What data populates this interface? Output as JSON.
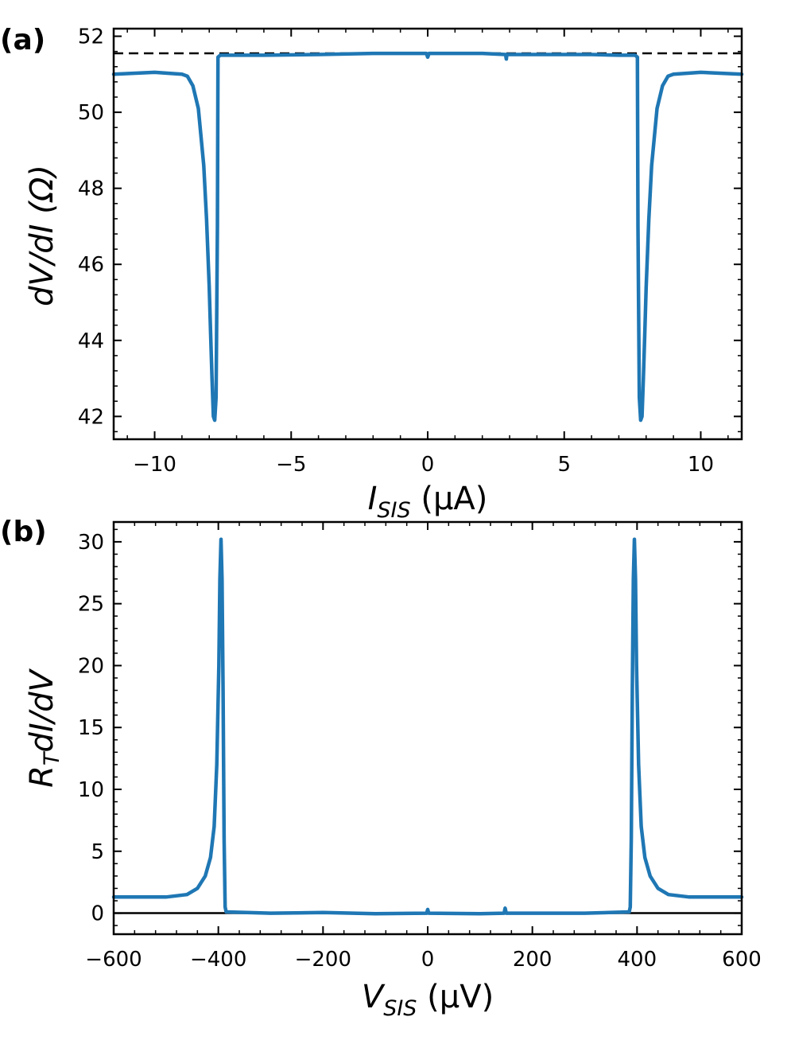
{
  "colors": {
    "series": "#1f77b4",
    "reference": "#000000"
  },
  "chart_data": [
    {
      "panel_label": "(a)",
      "type": "line",
      "xlabel": {
        "main": "I",
        "sub": "SIS",
        "unit": " (μA)"
      },
      "ylabel": "dV/dI (Ω)",
      "xlim": [
        -11.5,
        11.5
      ],
      "ylim": [
        41.4,
        52.2
      ],
      "xticks": [
        -10,
        -5,
        0,
        5,
        10
      ],
      "xtick_labels": [
        "−10",
        "−5",
        "0",
        "5",
        "10"
      ],
      "yticks": [
        42,
        44,
        46,
        48,
        50,
        52
      ],
      "ytick_labels": [
        "42",
        "44",
        "46",
        "48",
        "50",
        "52"
      ],
      "reference_line": {
        "y": 51.55,
        "style": "dashed"
      },
      "series": [
        {
          "name": "dV/dI",
          "x": [
            -11.5,
            -10,
            -9,
            -8.8,
            -8.6,
            -8.4,
            -8.2,
            -8.1,
            -8.0,
            -7.95,
            -7.9,
            -7.85,
            -7.8,
            -7.75,
            -7.7,
            -7.68,
            -7.6,
            -7.5,
            -7.0,
            -6,
            -4,
            -2,
            -0.05,
            0,
            0.05,
            2,
            2.85,
            2.88,
            2.9,
            4,
            6,
            7.0,
            7.5,
            7.6,
            7.68,
            7.7,
            7.75,
            7.8,
            7.85,
            7.9,
            7.95,
            8.0,
            8.1,
            8.2,
            8.4,
            8.6,
            8.8,
            9,
            10,
            11.5
          ],
          "y": [
            51.0,
            51.05,
            51.0,
            50.95,
            50.7,
            50.1,
            48.6,
            47.2,
            45.4,
            44.2,
            43.0,
            42.0,
            41.9,
            42.5,
            47.0,
            51.45,
            51.5,
            51.5,
            51.5,
            51.5,
            51.52,
            51.55,
            51.55,
            51.45,
            51.55,
            51.55,
            51.52,
            51.4,
            51.52,
            51.52,
            51.52,
            51.5,
            51.5,
            51.5,
            51.45,
            47.0,
            42.5,
            41.9,
            42.0,
            43.0,
            44.2,
            45.4,
            47.2,
            48.6,
            50.1,
            50.7,
            50.95,
            51.0,
            51.05,
            51.0
          ]
        }
      ]
    },
    {
      "panel_label": "(b)",
      "type": "line",
      "xlabel": {
        "main": "V",
        "sub": "SIS",
        "unit": " (μV)"
      },
      "ylabel": {
        "main": "R",
        "sub": "T",
        "rest": "dI/dV"
      },
      "xlim": [
        -600,
        600
      ],
      "ylim": [
        -1.7,
        31.6
      ],
      "xticks": [
        -600,
        -400,
        -200,
        0,
        200,
        400,
        600
      ],
      "xtick_labels": [
        "−600",
        "−400",
        "−200",
        "0",
        "200",
        "400",
        "600"
      ],
      "yticks": [
        0,
        5,
        10,
        15,
        20,
        25,
        30
      ],
      "ytick_labels": [
        "0",
        "5",
        "10",
        "15",
        "20",
        "25",
        "30"
      ],
      "reference_line": {
        "y": 0,
        "style": "solid"
      },
      "series": [
        {
          "name": "R_T dI/dV",
          "x": [
            -600,
            -500,
            -460,
            -440,
            -425,
            -415,
            -408,
            -403,
            -399,
            -397,
            -395,
            -393,
            -391,
            -389,
            -387,
            -385,
            -300,
            -200,
            -100,
            -2,
            0,
            2,
            100,
            146,
            148,
            150,
            200,
            300,
            385,
            387,
            389,
            391,
            393,
            395,
            397,
            399,
            403,
            408,
            415,
            425,
            440,
            460,
            500,
            600
          ],
          "y": [
            1.3,
            1.3,
            1.5,
            2.0,
            3.0,
            4.5,
            7.0,
            12.0,
            20.0,
            27.0,
            30.2,
            27.0,
            18.0,
            6.0,
            0.5,
            0.1,
            0.0,
            0.05,
            -0.05,
            0.0,
            0.3,
            0.0,
            -0.05,
            0.0,
            0.4,
            0.0,
            0.0,
            0.0,
            0.1,
            0.5,
            6.0,
            18.0,
            27.0,
            30.2,
            27.0,
            20.0,
            12.0,
            7.0,
            4.5,
            3.0,
            2.0,
            1.5,
            1.3,
            1.3
          ]
        }
      ]
    }
  ]
}
